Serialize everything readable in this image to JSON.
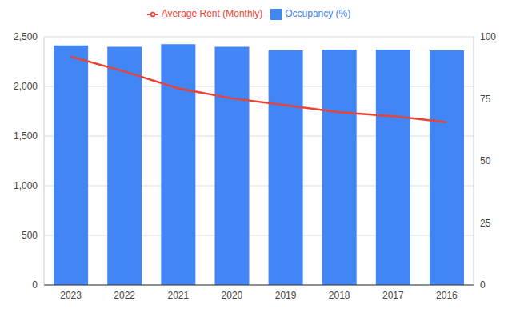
{
  "chart_data": {
    "type": "combo",
    "categories": [
      "2023",
      "2022",
      "2021",
      "2020",
      "2019",
      "2018",
      "2017",
      "2016"
    ],
    "series": [
      {
        "name": "Occupancy (%)",
        "type": "bar",
        "color": "#4285f4",
        "axis": "y2",
        "values": [
          96.5,
          96,
          97,
          96,
          94.5,
          94.8,
          94.8,
          94.5
        ]
      },
      {
        "name": "Average Rent (Monthly)",
        "type": "line",
        "color": "#ea4335",
        "values": [
          2300,
          2150,
          1980,
          1880,
          1810,
          1740,
          1700,
          1640
        ]
      }
    ],
    "ylim": [
      0,
      2500
    ],
    "yticks": [
      0,
      500,
      {
        "value": 1000,
        "label": "1,000"
      },
      {
        "value": 1500,
        "label": "1,500"
      },
      {
        "value": 2000,
        "label": "2,000"
      },
      {
        "value": 2500,
        "label": "2,500"
      }
    ],
    "y2lim": [
      0,
      100
    ],
    "y2ticks": [
      0,
      25,
      50,
      75,
      100
    ],
    "grid": true,
    "legend": "top"
  }
}
